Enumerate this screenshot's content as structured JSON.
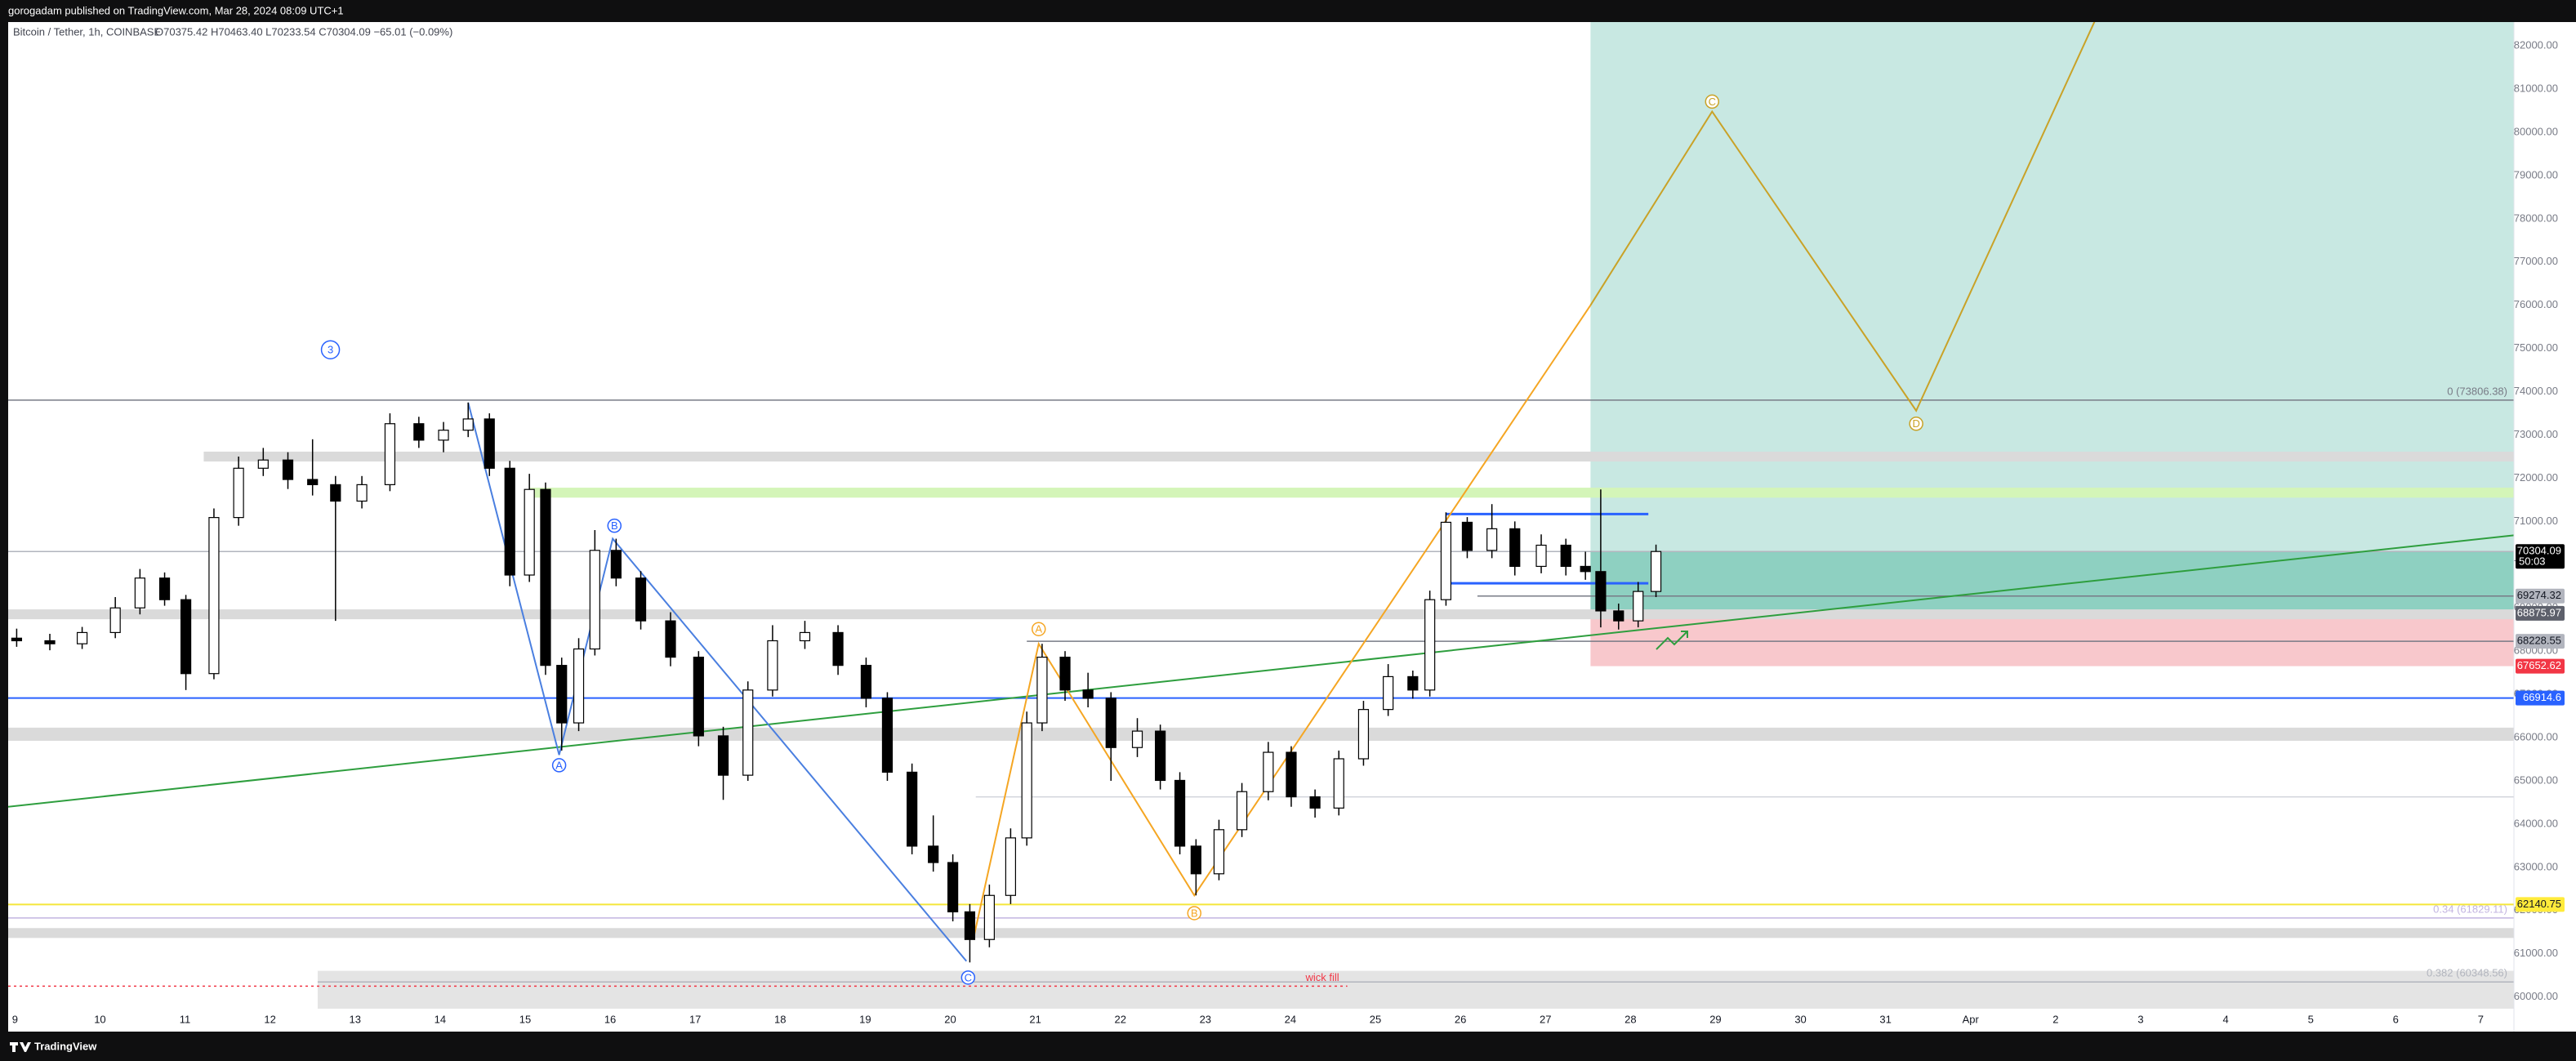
{
  "header": {
    "byline": "gorogadam published on TradingView.com, Mar 28, 2024 08:09 UTC+1",
    "symbol": "Bitcoin / Tether, 1h, COINBASE",
    "ohlc": "O70375.42 H70463.40 L70233.54 C70304.09 −65.01 (−0.09%)"
  },
  "chart_data": {
    "type": "candlestick",
    "xlim": [
      -0.08,
      29.39
    ],
    "ylim": [
      59200,
      82550
    ],
    "xticks": [
      {
        "value": 0,
        "label": "9"
      },
      {
        "value": 1,
        "label": "10"
      },
      {
        "value": 2,
        "label": "11"
      },
      {
        "value": 3,
        "label": "12"
      },
      {
        "value": 4,
        "label": "13"
      },
      {
        "value": 5,
        "label": "14"
      },
      {
        "value": 6,
        "label": "15"
      },
      {
        "value": 7,
        "label": "16"
      },
      {
        "value": 8,
        "label": "17"
      },
      {
        "value": 9,
        "label": "18"
      },
      {
        "value": 10,
        "label": "19"
      },
      {
        "value": 11,
        "label": "20"
      },
      {
        "value": 12,
        "label": "21"
      },
      {
        "value": 13,
        "label": "22"
      },
      {
        "value": 14,
        "label": "23"
      },
      {
        "value": 15,
        "label": "24"
      },
      {
        "value": 16,
        "label": "25"
      },
      {
        "value": 17,
        "label": "26"
      },
      {
        "value": 18,
        "label": "27"
      },
      {
        "value": 19,
        "label": "28"
      },
      {
        "value": 20,
        "label": "29"
      },
      {
        "value": 21,
        "label": "30"
      },
      {
        "value": 22,
        "label": "31"
      },
      {
        "value": 23,
        "label": "Apr"
      },
      {
        "value": 24,
        "label": "2"
      },
      {
        "value": 25,
        "label": "3"
      },
      {
        "value": 26,
        "label": "4"
      },
      {
        "value": 27,
        "label": "5"
      },
      {
        "value": 28,
        "label": "6"
      },
      {
        "value": 29,
        "label": "7"
      }
    ],
    "yticks": [
      {
        "value": 60000,
        "label": "60000.00"
      },
      {
        "value": 61000,
        "label": "61000.00"
      },
      {
        "value": 62000,
        "label": "62000.00"
      },
      {
        "value": 63000,
        "label": "63000.00"
      },
      {
        "value": 64000,
        "label": "64000.00"
      },
      {
        "value": 65000,
        "label": "65000.00"
      },
      {
        "value": 66000,
        "label": "66000.00"
      },
      {
        "value": 67000,
        "label": "67000.00"
      },
      {
        "value": 68000,
        "label": "68000.00"
      },
      {
        "value": 69000,
        "label": "69000.00"
      },
      {
        "value": 70000,
        "label": "70000.00"
      },
      {
        "value": 71000,
        "label": "71000.00"
      },
      {
        "value": 72000,
        "label": "72000.00"
      },
      {
        "value": 73000,
        "label": "73000.00"
      },
      {
        "value": 74000,
        "label": "74000.00"
      },
      {
        "value": 75000,
        "label": "75000.00"
      },
      {
        "value": 76000,
        "label": "76000.00"
      },
      {
        "value": 77000,
        "label": "77000.00"
      },
      {
        "value": 78000,
        "label": "78000.00"
      },
      {
        "value": 79000,
        "label": "79000.00"
      },
      {
        "value": 80000,
        "label": "80000.00"
      },
      {
        "value": 81000,
        "label": "81000.00"
      },
      {
        "value": 82000,
        "label": "82000.00"
      }
    ],
    "up_color": "#ffffff",
    "down_color": "#000000",
    "candles": [
      [
        0.02,
        68300,
        68520,
        68100,
        68240
      ],
      [
        0.41,
        68240,
        68400,
        68020,
        68170
      ],
      [
        0.79,
        68170,
        68560,
        68050,
        68430
      ],
      [
        1.18,
        68430,
        69250,
        68300,
        69000
      ],
      [
        1.47,
        69000,
        69900,
        68850,
        69690
      ],
      [
        1.76,
        69690,
        69820,
        69050,
        69190
      ],
      [
        2.01,
        69190,
        69300,
        67100,
        67480
      ],
      [
        2.34,
        67480,
        71300,
        67350,
        71090
      ],
      [
        2.63,
        71090,
        72500,
        70900,
        72230
      ],
      [
        2.92,
        72230,
        72700,
        72050,
        72420
      ],
      [
        3.21,
        72420,
        72600,
        71750,
        71970
      ],
      [
        3.5,
        71970,
        72900,
        71600,
        71850
      ],
      [
        3.77,
        71850,
        72050,
        68700,
        71470
      ],
      [
        4.08,
        71470,
        72050,
        71300,
        71850
      ],
      [
        4.41,
        71850,
        73500,
        71700,
        73260
      ],
      [
        4.75,
        73260,
        73420,
        72700,
        72880
      ],
      [
        5.04,
        72880,
        73300,
        72600,
        73110
      ],
      [
        5.33,
        73110,
        73750,
        72950,
        73370
      ],
      [
        5.58,
        73370,
        73500,
        72050,
        72230
      ],
      [
        5.82,
        72230,
        72400,
        69500,
        69760
      ],
      [
        6.05,
        69760,
        72100,
        69600,
        71740
      ],
      [
        6.24,
        71740,
        71900,
        67450,
        67670
      ],
      [
        6.43,
        67670,
        67850,
        65700,
        66340
      ],
      [
        6.63,
        66340,
        68300,
        66150,
        68050
      ],
      [
        6.82,
        68050,
        70800,
        67900,
        70330
      ],
      [
        7.07,
        70330,
        70600,
        69500,
        69690
      ],
      [
        7.36,
        69690,
        69850,
        68500,
        68700
      ],
      [
        7.71,
        68700,
        68900,
        67650,
        67860
      ],
      [
        8.04,
        67860,
        68000,
        65800,
        66040
      ],
      [
        8.33,
        66040,
        66250,
        64560,
        65130
      ],
      [
        8.62,
        65130,
        67300,
        65000,
        67100
      ],
      [
        8.91,
        67100,
        68600,
        66950,
        68240
      ],
      [
        9.29,
        68240,
        68700,
        68050,
        68430
      ],
      [
        9.68,
        68430,
        68600,
        67450,
        67670
      ],
      [
        10.01,
        67670,
        67850,
        66700,
        66910
      ],
      [
        10.26,
        66910,
        67050,
        65000,
        65200
      ],
      [
        10.55,
        65200,
        65400,
        63300,
        63490
      ],
      [
        10.8,
        63490,
        64200,
        62900,
        63110
      ],
      [
        11.03,
        63110,
        63300,
        61750,
        61970
      ],
      [
        11.23,
        61970,
        62150,
        60800,
        61330
      ],
      [
        11.46,
        61330,
        62600,
        61150,
        62350
      ],
      [
        11.71,
        62350,
        63900,
        62150,
        63680
      ],
      [
        11.9,
        63680,
        66600,
        63500,
        66340
      ],
      [
        12.08,
        66340,
        68170,
        66150,
        67860
      ],
      [
        12.35,
        67860,
        68000,
        66850,
        67100
      ],
      [
        12.62,
        67100,
        67500,
        66700,
        66910
      ],
      [
        12.89,
        66910,
        67050,
        65000,
        65770
      ],
      [
        13.2,
        65770,
        66450,
        65550,
        66150
      ],
      [
        13.47,
        66150,
        66300,
        64800,
        65010
      ],
      [
        13.7,
        65010,
        65200,
        63300,
        63490
      ],
      [
        13.89,
        63490,
        63650,
        62350,
        62850
      ],
      [
        14.16,
        62850,
        64100,
        62700,
        63870
      ],
      [
        14.43,
        63870,
        64950,
        63700,
        64750
      ],
      [
        14.74,
        64750,
        65900,
        64550,
        65660
      ],
      [
        15.01,
        65660,
        65800,
        64400,
        64630
      ],
      [
        15.29,
        64630,
        64800,
        64150,
        64370
      ],
      [
        15.57,
        64370,
        65700,
        64200,
        65510
      ],
      [
        15.86,
        65510,
        66850,
        65350,
        66650
      ],
      [
        16.15,
        66650,
        67700,
        66500,
        67410
      ],
      [
        16.44,
        67410,
        67550,
        66900,
        67100
      ],
      [
        16.64,
        67100,
        69400,
        66950,
        69190
      ],
      [
        16.83,
        69190,
        71210,
        69050,
        70980
      ],
      [
        17.08,
        70980,
        71100,
        70150,
        70330
      ],
      [
        17.37,
        70330,
        71400,
        70150,
        70830
      ],
      [
        17.64,
        70830,
        71000,
        69750,
        69960
      ],
      [
        17.95,
        69960,
        70700,
        69800,
        70450
      ],
      [
        18.24,
        70450,
        70600,
        69750,
        69960
      ],
      [
        18.47,
        69960,
        70300,
        69650,
        69840
      ],
      [
        18.65,
        69840,
        71740,
        68550,
        68930
      ],
      [
        18.86,
        68930,
        69100,
        68500,
        68700
      ],
      [
        19.09,
        68700,
        69600,
        68550,
        69380
      ],
      [
        19.3,
        69380,
        70463.4,
        69250,
        70304.09
      ]
    ],
    "position": {
      "x_start": 18.53,
      "entry": 68875.97,
      "stop": 67652.62,
      "target": 83000,
      "profit_color": "#c8e8e2",
      "open_color": "#8ed0c1",
      "loss_color": "#f8c8cc"
    },
    "bands": [
      {
        "low": 72386,
        "high": 72614,
        "x_start": 2.22,
        "color": "#dadada"
      },
      {
        "low": 71550,
        "high": 71780,
        "x_start": 6.05,
        "color": "#d4f5b8"
      },
      {
        "low": 68738,
        "high": 68966,
        "color": "#dadada"
      },
      {
        "low": 65926,
        "high": 66230,
        "color": "#dadada"
      },
      {
        "low": 61366,
        "high": 61594,
        "color": "#dadada"
      },
      {
        "low": 59730,
        "high": 60606,
        "x_start": 3.56,
        "color": "#e4e4e4"
      }
    ],
    "levels": [
      {
        "value": 73806.38,
        "color": "#787b86",
        "label": "0 (73806.38)"
      },
      {
        "value": 70304.09,
        "color": "#b2b5be"
      },
      {
        "value": 69274.32,
        "color": "#787b86",
        "x_start": 17.2
      },
      {
        "value": 68228.55,
        "color": "#787b86",
        "x_start": 11.9
      },
      {
        "value": 66914.6,
        "color": "#2962ff",
        "width": 2
      },
      {
        "value": 64630,
        "color": "#d1d4dc",
        "x_start": 11.3
      },
      {
        "value": 62140.75,
        "color": "#f5e63a",
        "width": 2
      },
      {
        "value": 61829.11,
        "color": "#c3b5e0",
        "label": "0.34 (61829.11)"
      },
      {
        "value": 60348.56,
        "color": "#b2b5be",
        "x_start": 3.56,
        "label": "0.382 (60348.56)"
      },
      {
        "value": 60250,
        "color": "#f23645",
        "x_end": 15.67,
        "dashed": true,
        "label": "wick fill"
      },
      {
        "value": 71170,
        "color": "#2962ff",
        "x_start": 16.83,
        "x_end": 19.21,
        "width": 3
      },
      {
        "value": 69570,
        "color": "#2962ff",
        "x_start": 16.83,
        "x_end": 19.21,
        "width": 3
      }
    ],
    "trendlines": [
      {
        "color": "#2e9e3e",
        "points": [
          [
            -0.08,
            64400
          ],
          [
            29.39,
            70680
          ]
        ]
      },
      {
        "color": "#4a7fe0",
        "points": [
          [
            5.33,
            73750
          ],
          [
            6.4,
            65600
          ],
          [
            7.03,
            70600
          ],
          [
            11.19,
            60830
          ]
        ]
      },
      {
        "color": "#f5a623",
        "points": [
          [
            11.27,
            61330
          ],
          [
            12.04,
            68170
          ],
          [
            13.87,
            62350
          ],
          [
            18.53,
            76000
          ]
        ]
      },
      {
        "color": "#c9a227",
        "points": [
          [
            18.53,
            76000
          ],
          [
            19.96,
            80480
          ],
          [
            22.36,
            73560
          ],
          [
            24.46,
            82570
          ]
        ]
      }
    ],
    "wave_labels": [
      {
        "text": "3",
        "x": 3.71,
        "y": 74970,
        "color": "#2962ff"
      },
      {
        "text": "A",
        "x": 6.4,
        "y": 65360,
        "color": "#2962ff"
      },
      {
        "text": "B",
        "x": 7.05,
        "y": 70900,
        "color": "#2962ff"
      },
      {
        "text": "C",
        "x": 11.21,
        "y": 60450,
        "color": "#2962ff"
      },
      {
        "text": "A",
        "x": 12.04,
        "y": 68510,
        "color": "#f5a623"
      },
      {
        "text": "B",
        "x": 13.87,
        "y": 61940,
        "color": "#f5a623"
      },
      {
        "text": "C",
        "x": 19.96,
        "y": 80710,
        "color": "#c9a227"
      },
      {
        "text": "D",
        "x": 22.36,
        "y": 73260,
        "color": "#c9a227"
      }
    ],
    "price_tags": [
      {
        "value": 70304.09,
        "bg": "#000000",
        "fg": "#ffffff",
        "sub": "50:03"
      },
      {
        "value": 69274.32,
        "bg": "#b2b5be",
        "fg": "#131722"
      },
      {
        "value": 68875.97,
        "bg": "#5d606b",
        "fg": "#ffffff"
      },
      {
        "value": 68228.55,
        "bg": "#b2b5be",
        "fg": "#131722"
      },
      {
        "value": 67652.62,
        "bg": "#f23645",
        "fg": "#ffffff"
      },
      {
        "value": 66914.6,
        "bg": "#2962ff",
        "fg": "#ffffff"
      },
      {
        "value": 62140.75,
        "bg": "#ffeb3b",
        "fg": "#131722"
      }
    ]
  },
  "footer": {
    "brand": "TradingView"
  }
}
